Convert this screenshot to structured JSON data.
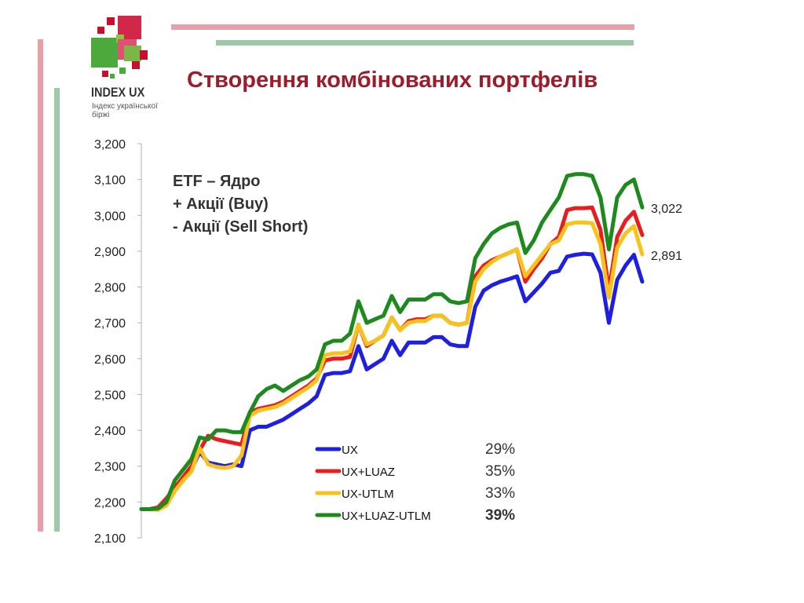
{
  "logo": {
    "title": "INDEX UX",
    "subtitle_line1": "Індекс української",
    "subtitle_line2": "біржі"
  },
  "slide": {
    "title": "Створення комбінованих портфелів"
  },
  "annotation": {
    "line1": "ETF – Ядро",
    "line2": "+ Акції (Buy)",
    "line3": "- Акції (Sell Short)"
  },
  "colors": {
    "title": "#9b1c2a",
    "bar_pink": "#e8a0a8",
    "bar_green": "#9cc9a8",
    "UX": "#1f1fe0",
    "UX+LUAZ": "#e81e1e",
    "UX-UTLM": "#f7c21b",
    "UX+LUAZ-UTLM": "#1e8a1e"
  },
  "chart_data": {
    "type": "line",
    "ylim": [
      2100,
      3200
    ],
    "yticks": [
      "2,100",
      "2,200",
      "2,300",
      "2,400",
      "2,500",
      "2,600",
      "2,700",
      "2,800",
      "2,900",
      "3,000",
      "3,100",
      "3,200"
    ],
    "x_count": 61,
    "series": [
      {
        "name": "UX",
        "return": "29%",
        "bold": false,
        "values": [
          2180,
          2180,
          2182,
          2200,
          2235,
          2265,
          2290,
          2340,
          2310,
          2305,
          2300,
          2305,
          2300,
          2400,
          2410,
          2410,
          2420,
          2430,
          2445,
          2460,
          2475,
          2495,
          2555,
          2560,
          2560,
          2565,
          2635,
          2570,
          2585,
          2600,
          2650,
          2610,
          2645,
          2645,
          2645,
          2660,
          2660,
          2640,
          2635,
          2635,
          2745,
          2790,
          2805,
          2815,
          2822,
          2830,
          2760,
          2785,
          2810,
          2840,
          2845,
          2885,
          2890,
          2893,
          2891,
          2840,
          2700,
          2820,
          2860,
          2890,
          2815
        ]
      },
      {
        "name": "UX+LUAZ",
        "return": "35%",
        "bold": false,
        "values": [
          2180,
          2180,
          2185,
          2210,
          2240,
          2270,
          2300,
          2345,
          2385,
          2375,
          2370,
          2365,
          2360,
          2450,
          2460,
          2465,
          2470,
          2480,
          2495,
          2510,
          2525,
          2545,
          2595,
          2600,
          2600,
          2605,
          2695,
          2635,
          2650,
          2665,
          2715,
          2680,
          2705,
          2710,
          2710,
          2720,
          2720,
          2700,
          2695,
          2700,
          2830,
          2860,
          2875,
          2885,
          2895,
          2905,
          2815,
          2850,
          2880,
          2920,
          2940,
          3015,
          3020,
          3020,
          3022,
          2960,
          2790,
          2940,
          2985,
          3010,
          2945
        ]
      },
      {
        "name": "UX-UTLM",
        "return": "33%",
        "bold": false,
        "values": [
          2180,
          2180,
          2178,
          2190,
          2230,
          2260,
          2285,
          2350,
          2305,
          2298,
          2295,
          2300,
          2330,
          2440,
          2455,
          2460,
          2465,
          2475,
          2490,
          2505,
          2520,
          2540,
          2610,
          2615,
          2615,
          2620,
          2695,
          2640,
          2650,
          2665,
          2715,
          2680,
          2700,
          2705,
          2705,
          2720,
          2720,
          2700,
          2695,
          2700,
          2815,
          2850,
          2870,
          2885,
          2895,
          2905,
          2830,
          2860,
          2890,
          2920,
          2930,
          2975,
          2980,
          2980,
          2978,
          2920,
          2770,
          2910,
          2950,
          2970,
          2891
        ]
      },
      {
        "name": "UX+LUAZ-UTLM",
        "return": "39%",
        "bold": true,
        "values": [
          2180,
          2180,
          2182,
          2200,
          2260,
          2290,
          2320,
          2380,
          2375,
          2400,
          2400,
          2395,
          2395,
          2450,
          2495,
          2515,
          2525,
          2510,
          2525,
          2540,
          2550,
          2570,
          2640,
          2650,
          2650,
          2670,
          2760,
          2700,
          2710,
          2720,
          2775,
          2730,
          2765,
          2765,
          2765,
          2780,
          2780,
          2760,
          2755,
          2760,
          2880,
          2920,
          2950,
          2965,
          2975,
          2980,
          2895,
          2930,
          2980,
          3015,
          3050,
          3110,
          3115,
          3115,
          3110,
          3050,
          2905,
          3050,
          3085,
          3100,
          3022
        ]
      }
    ],
    "end_labels": [
      "3,022",
      "2,891"
    ]
  }
}
